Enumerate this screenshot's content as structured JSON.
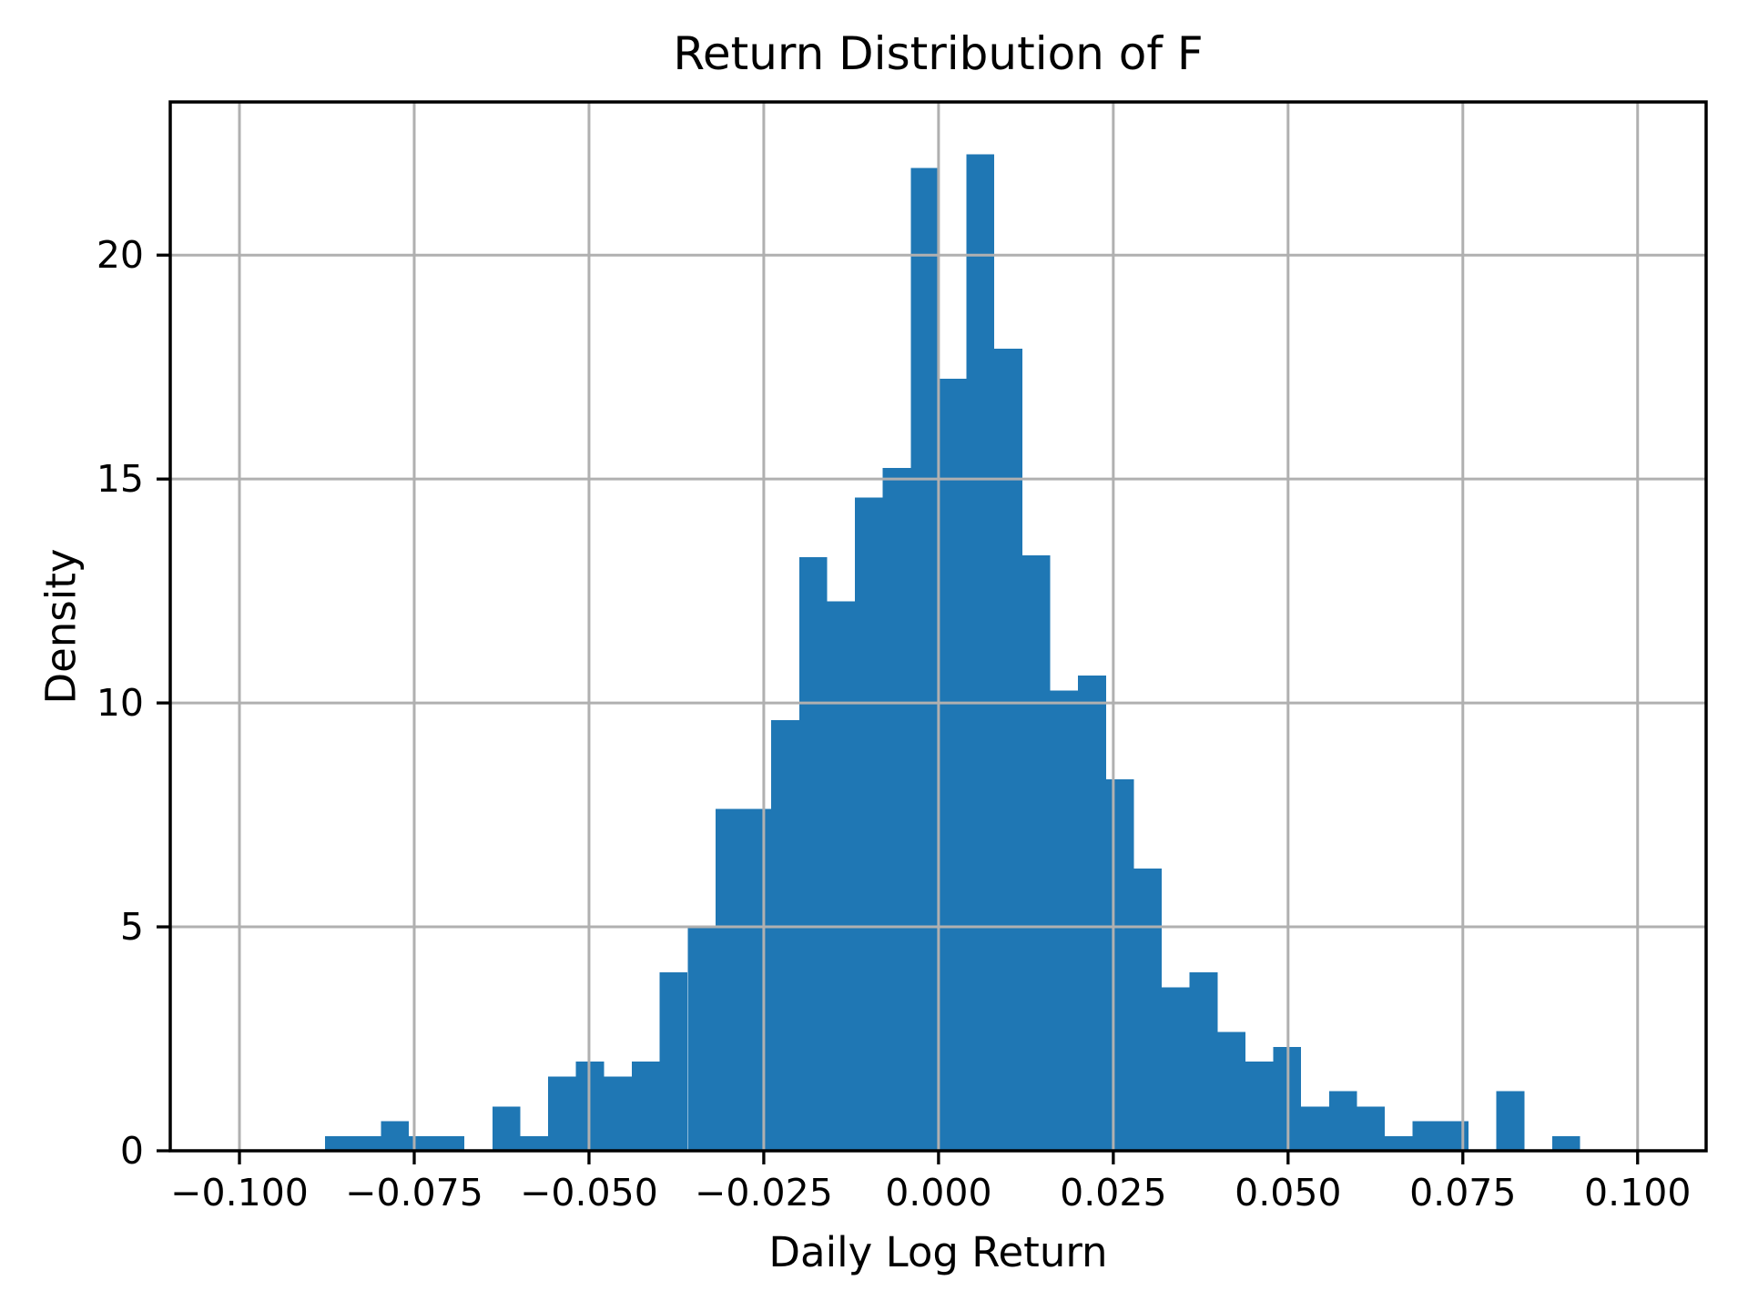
{
  "chart_data": {
    "type": "bar",
    "subtype": "histogram",
    "title": "Return Distribution of F",
    "xlabel": "Daily Log Return",
    "ylabel": "Density",
    "bar_color": "#1f77b4",
    "grid_color": "#b0b0b0",
    "spine_color": "#000000",
    "grid_on": true,
    "legend": "none",
    "xlim": [
      -0.1099,
      0.1098
    ],
    "ylim": [
      0,
      23.42
    ],
    "xticks": [
      -0.1,
      -0.075,
      -0.05,
      -0.025,
      0.0,
      0.025,
      0.05,
      0.075,
      0.1
    ],
    "xtick_labels": [
      "−0.100",
      "−0.075",
      "−0.050",
      "−0.025",
      "0.000",
      "0.025",
      "0.050",
      "0.075",
      "0.100"
    ],
    "yticks": [
      0,
      5,
      10,
      15,
      20
    ],
    "ytick_labels": [
      "0",
      "5",
      "10",
      "15",
      "20"
    ],
    "bins": {
      "start": -0.08776,
      "width": 0.0039895,
      "count": 45
    },
    "densities": [
      0.33,
      0.33,
      0.66,
      0.33,
      0.33,
      0,
      0.99,
      0.33,
      1.66,
      1.99,
      1.66,
      1.99,
      3.98,
      4.97,
      7.63,
      7.63,
      9.62,
      13.26,
      12.27,
      14.59,
      15.25,
      21.95,
      17.24,
      22.25,
      17.91,
      13.3,
      10.28,
      10.61,
      8.29,
      6.3,
      3.65,
      3.98,
      2.65,
      1.99,
      2.32,
      0.99,
      1.33,
      0.99,
      0.33,
      0.66,
      0.66,
      0,
      1.33,
      0,
      0.33
    ]
  }
}
